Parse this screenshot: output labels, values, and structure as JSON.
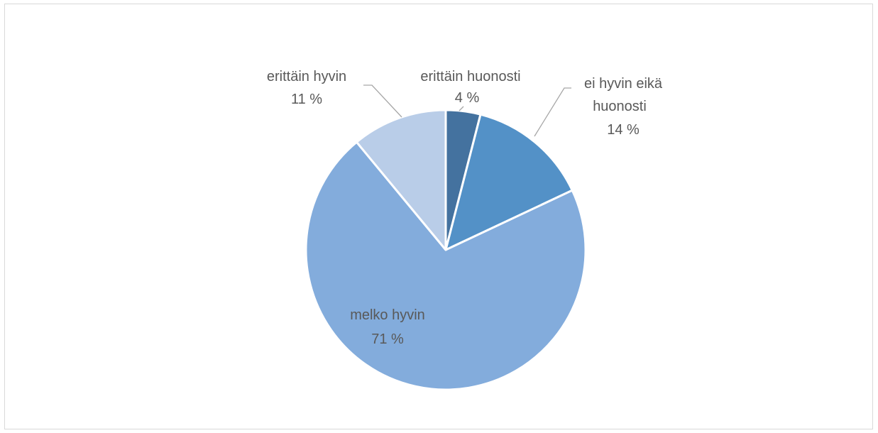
{
  "chart_data": {
    "type": "pie",
    "title": "",
    "slices": [
      {
        "label": "erittäin huonosti",
        "value": 4,
        "value_label": "4 %",
        "color": "#44729f"
      },
      {
        "label": "ei hyvin eikä huonosti",
        "value": 14,
        "value_label": "14 %",
        "color": "#5391c7"
      },
      {
        "label": "melko hyvin",
        "value": 71,
        "value_label": "71 %",
        "color": "#83acdc"
      },
      {
        "label": "erittäin hyvin",
        "value": 11,
        "value_label": "11 %",
        "color": "#b9cde8"
      }
    ],
    "start_angle_deg": 0,
    "direction": "clockwise",
    "legend": "none",
    "data_labels": "category and percentage"
  }
}
